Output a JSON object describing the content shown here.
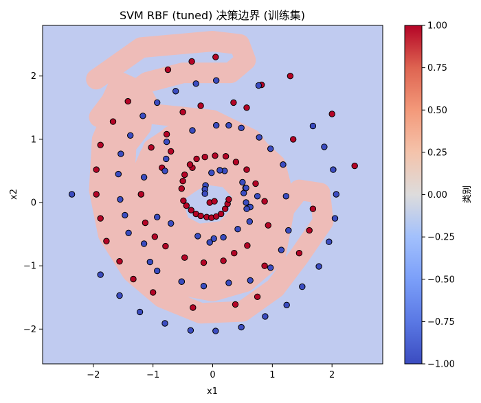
{
  "chart_data": {
    "type": "scatter",
    "title": "SVM RBF (tuned) 决策边界 (训练集)",
    "xlabel": "x1",
    "ylabel": "x2",
    "xlim": [
      -2.85,
      2.85
    ],
    "ylim": [
      -2.55,
      2.8
    ],
    "x_ticks": [
      -2,
      -1,
      0,
      1,
      2
    ],
    "y_ticks": [
      -2,
      -1,
      0,
      1,
      2
    ],
    "grid": false,
    "background_region_color": "#c0cbf0",
    "positive_region_color": "#eebcb8",
    "colorbar": {
      "label": "类别",
      "range": [
        -1.0,
        1.0
      ],
      "ticks": [
        -1.0,
        -0.75,
        -0.5,
        -0.25,
        0.0,
        0.25,
        0.5,
        0.75,
        1.0
      ],
      "tick_labels": [
        "−1.00",
        "−0.75",
        "−0.50",
        "−0.25",
        "0.00",
        "0.25",
        "0.50",
        "0.75",
        "1.00"
      ],
      "colormap": "coolwarm"
    },
    "decision_region_positive": [
      [
        -1.95,
        1.95
      ],
      [
        -1.2,
        2.45
      ],
      [
        0.0,
        2.55
      ],
      [
        0.45,
        2.5
      ],
      [
        0.55,
        2.25
      ],
      [
        0.3,
        2.05
      ],
      [
        -0.5,
        2.05
      ],
      [
        -1.1,
        1.9
      ],
      [
        -1.6,
        1.55
      ],
      [
        -1.85,
        1.0
      ],
      [
        -1.9,
        0.2
      ],
      [
        -1.75,
        -0.5
      ],
      [
        -1.35,
        -1.1
      ],
      [
        -0.85,
        -1.5
      ],
      [
        -0.2,
        -1.75
      ],
      [
        0.5,
        -1.72
      ],
      [
        1.05,
        -1.35
      ],
      [
        1.45,
        -0.85
      ],
      [
        1.85,
        -0.3
      ],
      [
        1.8,
        0.15
      ],
      [
        1.45,
        0.2
      ],
      [
        1.2,
        -0.1
      ],
      [
        1.05,
        -0.85
      ],
      [
        0.55,
        -1.25
      ],
      [
        0.0,
        -1.4
      ],
      [
        -0.55,
        -1.3
      ],
      [
        -1.15,
        -1.0
      ],
      [
        -1.45,
        -0.45
      ],
      [
        -1.5,
        0.1
      ],
      [
        -1.45,
        0.9
      ],
      [
        -1.2,
        1.2
      ],
      [
        -1.15,
        1.6
      ],
      [
        -1.4,
        1.25
      ],
      [
        -1.65,
        0.75
      ],
      [
        -1.7,
        0.1
      ],
      [
        -1.55,
        -0.55
      ],
      [
        -1.2,
        -0.95
      ],
      [
        -0.7,
        -1.2
      ],
      [
        0.0,
        -1.25
      ],
      [
        0.5,
        -1.15
      ],
      [
        0.85,
        -0.85
      ],
      [
        1.05,
        -0.45
      ],
      [
        1.2,
        0.05
      ],
      [
        1.05,
        0.6
      ],
      [
        0.7,
        0.9
      ],
      [
        0.3,
        1.05
      ],
      [
        -0.15,
        1.15
      ],
      [
        -0.7,
        1.05
      ],
      [
        -1.05,
        0.75
      ],
      [
        -1.3,
        0.2
      ],
      [
        -1.25,
        -0.3
      ],
      [
        -1.0,
        -0.7
      ],
      [
        -0.55,
        -0.95
      ],
      [
        0.1,
        -1.0
      ],
      [
        0.55,
        -0.85
      ],
      [
        0.9,
        -0.45
      ],
      [
        1.0,
        0.0
      ],
      [
        0.95,
        0.45
      ],
      [
        0.7,
        0.7
      ],
      [
        0.3,
        0.9
      ],
      [
        -0.15,
        0.95
      ],
      [
        -0.55,
        0.85
      ],
      [
        -0.85,
        0.55
      ],
      [
        -1.05,
        0.05
      ],
      [
        -0.95,
        -0.4
      ],
      [
        -0.6,
        -0.75
      ],
      [
        -0.1,
        -0.8
      ],
      [
        0.4,
        -0.65
      ],
      [
        0.7,
        -0.3
      ],
      [
        0.8,
        0.1
      ],
      [
        0.65,
        0.45
      ],
      [
        0.3,
        0.65
      ],
      [
        -0.1,
        0.7
      ],
      [
        -0.45,
        0.55
      ],
      [
        -0.55,
        0.2
      ],
      [
        -0.4,
        0.3
      ],
      [
        -0.15,
        0.45
      ],
      [
        0.25,
        0.4
      ],
      [
        0.5,
        0.15
      ],
      [
        0.45,
        -0.2
      ],
      [
        0.2,
        -0.45
      ],
      [
        -0.25,
        -0.5
      ],
      [
        -0.55,
        -0.35
      ],
      [
        -0.7,
        0.05
      ],
      [
        -0.6,
        0.45
      ],
      [
        -0.35,
        0.7
      ],
      [
        0.05,
        0.8
      ],
      [
        0.45,
        0.75
      ],
      [
        0.75,
        0.5
      ],
      [
        0.9,
        0.1
      ],
      [
        0.8,
        -0.35
      ],
      [
        0.45,
        -0.7
      ],
      [
        -0.05,
        -0.85
      ],
      [
        -0.5,
        -0.75
      ],
      [
        -0.85,
        -0.45
      ],
      [
        -0.95,
        0.1
      ],
      [
        -0.8,
        0.6
      ],
      [
        -0.45,
        0.9
      ],
      [
        -0.6,
        1.1
      ],
      [
        -1.0,
        0.85
      ],
      [
        -1.2,
        0.3
      ],
      [
        -1.15,
        -0.5
      ],
      [
        -0.75,
        -1.0
      ],
      [
        -0.1,
        -1.15
      ],
      [
        0.5,
        -1.05
      ],
      [
        0.9,
        -0.65
      ],
      [
        1.1,
        -0.1
      ],
      [
        1.0,
        0.55
      ],
      [
        0.65,
        1.0
      ],
      [
        0.0,
        1.3
      ],
      [
        -0.5,
        1.35
      ],
      [
        -1.0,
        1.4
      ],
      [
        -1.2,
        1.75
      ],
      [
        -1.55,
        1.9
      ],
      [
        -1.7,
        1.6
      ],
      [
        -1.9,
        1.35
      ]
    ],
    "series": [
      {
        "name": "1",
        "color": "#b40426",
        "points": [
          [
            0.05,
            2.3
          ],
          [
            -0.35,
            2.23
          ],
          [
            -0.75,
            2.1
          ],
          [
            -1.42,
            1.6
          ],
          [
            -1.67,
            1.28
          ],
          [
            -1.88,
            0.91
          ],
          [
            -1.95,
            0.52
          ],
          [
            -1.95,
            0.13
          ],
          [
            -1.88,
            -0.25
          ],
          [
            -1.78,
            -0.61
          ],
          [
            -1.56,
            -0.93
          ],
          [
            -1.33,
            -1.21
          ],
          [
            -1.0,
            -1.42
          ],
          [
            -0.33,
            -1.66
          ],
          [
            0.38,
            -1.61
          ],
          [
            0.75,
            -1.49
          ],
          [
            1.35,
            1.0
          ],
          [
            1.3,
            2.0
          ],
          [
            0.82,
            1.86
          ],
          [
            0.57,
            1.5
          ],
          [
            0.35,
            1.58
          ],
          [
            -0.2,
            1.53
          ],
          [
            -0.5,
            1.43
          ],
          [
            -0.77,
            1.08
          ],
          [
            -1.03,
            0.87
          ],
          [
            -1.2,
            0.13
          ],
          [
            -1.13,
            -0.32
          ],
          [
            -0.97,
            -0.54
          ],
          [
            -0.79,
            -0.69
          ],
          [
            -0.47,
            -0.87
          ],
          [
            -0.15,
            -0.95
          ],
          [
            0.18,
            -0.92
          ],
          [
            0.36,
            -0.8
          ],
          [
            0.58,
            -0.68
          ],
          [
            2.0,
            1.4
          ],
          [
            2.38,
            0.58
          ],
          [
            1.68,
            -0.1
          ],
          [
            1.62,
            -0.44
          ],
          [
            1.45,
            -0.8
          ],
          [
            0.87,
            -1.0
          ],
          [
            -1.2,
            0.13
          ],
          [
            -0.34,
            0.55
          ],
          [
            -0.47,
            0.44
          ],
          [
            -0.5,
            0.34
          ],
          [
            -0.52,
            0.22
          ],
          [
            -0.49,
            0.03
          ],
          [
            -0.44,
            -0.05
          ],
          [
            -0.36,
            -0.12
          ],
          [
            -0.28,
            -0.18
          ],
          [
            -0.2,
            -0.21
          ],
          [
            -0.1,
            -0.23
          ],
          [
            -0.02,
            -0.24
          ],
          [
            0.06,
            -0.22
          ],
          [
            0.14,
            -0.18
          ],
          [
            0.21,
            -0.1
          ],
          [
            0.25,
            -0.02
          ],
          [
            0.27,
            0.05
          ],
          [
            -0.05,
            0.0
          ],
          [
            0.03,
            0.02
          ],
          [
            -0.38,
            0.6
          ],
          [
            -0.27,
            0.69
          ],
          [
            -0.13,
            0.72
          ],
          [
            0.04,
            0.74
          ],
          [
            0.22,
            0.73
          ],
          [
            0.39,
            0.64
          ],
          [
            0.57,
            0.52
          ],
          [
            0.72,
            0.3
          ],
          [
            0.87,
            0.02
          ],
          [
            0.93,
            -0.36
          ],
          [
            -0.7,
            0.81
          ],
          [
            -0.85,
            0.55
          ]
        ]
      },
      {
        "name": "-1",
        "color": "#3b4cc0",
        "points": [
          [
            -2.36,
            0.13
          ],
          [
            -1.88,
            -1.14
          ],
          [
            -1.56,
            -1.47
          ],
          [
            -1.22,
            -1.73
          ],
          [
            -0.8,
            -1.91
          ],
          [
            -0.37,
            -2.02
          ],
          [
            0.05,
            -2.03
          ],
          [
            0.48,
            -1.97
          ],
          [
            0.88,
            -1.8
          ],
          [
            1.24,
            -1.62
          ],
          [
            1.5,
            -1.33
          ],
          [
            1.78,
            -1.01
          ],
          [
            1.95,
            -0.62
          ],
          [
            2.05,
            -0.25
          ],
          [
            2.07,
            0.13
          ],
          [
            2.02,
            0.52
          ],
          [
            1.87,
            0.88
          ],
          [
            1.68,
            1.21
          ],
          [
            0.77,
            1.85
          ],
          [
            0.06,
            1.93
          ],
          [
            -0.28,
            1.88
          ],
          [
            -0.62,
            1.76
          ],
          [
            -0.93,
            1.58
          ],
          [
            -1.17,
            1.37
          ],
          [
            -1.38,
            1.06
          ],
          [
            -1.54,
            0.77
          ],
          [
            -1.58,
            0.45
          ],
          [
            -1.55,
            0.05
          ],
          [
            -1.47,
            -0.2
          ],
          [
            -1.41,
            -0.48
          ],
          [
            -1.15,
            -0.65
          ],
          [
            -1.05,
            -0.94
          ],
          [
            -0.93,
            -1.08
          ],
          [
            -0.52,
            -1.25
          ],
          [
            -0.52,
            -1.25
          ],
          [
            -0.15,
            -1.32
          ],
          [
            0.27,
            -1.27
          ],
          [
            0.63,
            -1.23
          ],
          [
            0.97,
            -1.03
          ],
          [
            1.15,
            -0.75
          ],
          [
            1.27,
            -0.44
          ],
          [
            1.23,
            0.1
          ],
          [
            1.18,
            0.6
          ],
          [
            0.97,
            0.85
          ],
          [
            0.78,
            1.03
          ],
          [
            0.48,
            1.18
          ],
          [
            0.27,
            1.22
          ],
          [
            0.06,
            1.22
          ],
          [
            -0.34,
            1.14
          ],
          [
            -0.77,
            0.96
          ],
          [
            -0.8,
            0.5
          ],
          [
            -0.78,
            0.69
          ],
          [
            -0.93,
            -0.23
          ],
          [
            -0.7,
            -0.33
          ],
          [
            -0.25,
            -0.53
          ],
          [
            0.02,
            -0.57
          ],
          [
            0.18,
            -0.55
          ],
          [
            0.42,
            -0.42
          ],
          [
            0.62,
            -0.3
          ],
          [
            0.63,
            -0.07
          ],
          [
            0.56,
            0.0
          ],
          [
            0.52,
            0.15
          ],
          [
            0.55,
            0.23
          ],
          [
            0.5,
            0.32
          ],
          [
            0.2,
            0.5
          ],
          [
            0.12,
            0.51
          ],
          [
            -0.02,
            0.47
          ],
          [
            -0.12,
            0.27
          ],
          [
            -0.13,
            0.21
          ],
          [
            -0.13,
            0.14
          ],
          [
            0.56,
            0.23
          ],
          [
            0.75,
            0.1
          ],
          [
            -0.05,
            -0.63
          ],
          [
            -1.15,
            0.4
          ],
          [
            0.57,
            -0.1
          ]
        ]
      }
    ]
  }
}
